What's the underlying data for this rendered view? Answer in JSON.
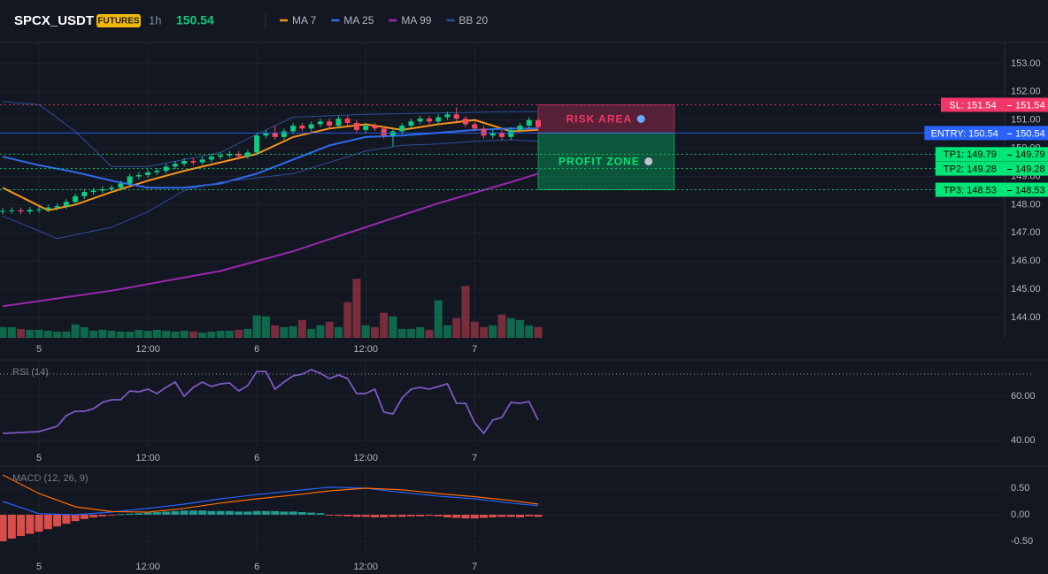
{
  "chart_data": [
    {
      "type": "candlestick",
      "title": "SPCX_USDT",
      "badge": "FUTURES",
      "interval": "1h",
      "last_price": 150.54,
      "xlim": [
        -4.3,
        106.4
      ],
      "xticks": [
        {
          "value": 0,
          "label": "5"
        },
        {
          "value": 12,
          "label": "12:00"
        },
        {
          "value": 24,
          "label": "6"
        },
        {
          "value": 36,
          "label": "12:00"
        },
        {
          "value": 48,
          "label": "7"
        }
      ],
      "ylim": [
        143.28,
        153.75
      ],
      "yticks": [
        {
          "value": 153,
          "label": "153.00"
        },
        {
          "value": 152,
          "label": "152.00"
        },
        {
          "value": 151,
          "label": "151.00"
        },
        {
          "value": 150,
          "label": "150.00"
        },
        {
          "value": 149,
          "label": "149.00"
        },
        {
          "value": 148,
          "label": "148.00"
        },
        {
          "value": 147,
          "label": "147.00"
        },
        {
          "value": 146,
          "label": "146.00"
        },
        {
          "value": 145,
          "label": "145.00"
        },
        {
          "value": 144,
          "label": "144.00"
        }
      ],
      "grid": true,
      "up_color": "#0ecb81",
      "down_color": "#f6465d",
      "x": [
        -4,
        -3,
        -2,
        -1,
        0,
        1,
        2,
        3,
        4,
        5,
        6,
        7,
        8,
        9,
        10,
        11,
        12,
        13,
        14,
        15,
        16,
        17,
        18,
        19,
        20,
        21,
        22,
        23,
        24,
        25,
        26,
        27,
        28,
        29,
        30,
        31,
        32,
        33,
        34,
        35,
        36,
        37,
        38,
        39,
        40,
        41,
        42,
        43,
        44,
        45,
        46,
        47,
        48,
        49,
        50,
        51,
        52,
        53,
        54,
        55
      ],
      "open": [
        147.75,
        147.78,
        147.8,
        147.76,
        147.82,
        147.84,
        147.9,
        147.95,
        148.1,
        148.3,
        148.45,
        148.5,
        148.55,
        148.6,
        148.75,
        149.0,
        149.05,
        149.15,
        149.2,
        149.35,
        149.45,
        149.55,
        149.5,
        149.6,
        149.7,
        149.75,
        149.8,
        149.72,
        149.85,
        150.45,
        150.55,
        150.4,
        150.6,
        150.8,
        150.7,
        150.85,
        150.95,
        150.8,
        151.05,
        150.9,
        150.65,
        150.8,
        150.7,
        150.45,
        150.6,
        150.8,
        150.95,
        151.05,
        150.95,
        151.1,
        151.2,
        151.05,
        150.85,
        150.7,
        150.45,
        150.55,
        150.4,
        150.65,
        150.8,
        151.0
      ],
      "high": [
        147.88,
        147.9,
        147.9,
        147.92,
        147.94,
        148.0,
        148.05,
        148.2,
        148.4,
        148.55,
        148.6,
        148.65,
        148.7,
        148.85,
        149.1,
        149.15,
        149.25,
        149.3,
        149.45,
        149.55,
        149.65,
        149.65,
        149.7,
        149.8,
        149.85,
        149.9,
        149.9,
        149.95,
        150.55,
        150.65,
        150.8,
        150.7,
        150.9,
        150.9,
        150.95,
        151.05,
        151.05,
        151.15,
        151.15,
        151.0,
        150.9,
        150.9,
        150.8,
        150.7,
        150.9,
        151.05,
        151.15,
        151.15,
        151.2,
        151.3,
        151.45,
        151.15,
        150.95,
        150.8,
        150.65,
        150.65,
        150.75,
        150.9,
        151.1,
        151.1
      ],
      "low": [
        147.65,
        147.68,
        147.66,
        147.66,
        147.72,
        147.74,
        147.8,
        147.85,
        148.0,
        148.2,
        148.35,
        148.4,
        148.45,
        148.5,
        148.65,
        148.9,
        148.95,
        149.05,
        149.1,
        149.25,
        149.35,
        149.4,
        149.4,
        149.5,
        149.6,
        149.65,
        149.62,
        149.62,
        149.75,
        150.35,
        150.3,
        150.3,
        150.5,
        150.6,
        150.6,
        150.75,
        150.7,
        150.7,
        150.8,
        150.55,
        150.55,
        150.6,
        150.35,
        150.05,
        150.5,
        150.7,
        150.85,
        150.85,
        150.85,
        151.0,
        150.95,
        150.75,
        150.6,
        150.35,
        150.35,
        150.3,
        150.3,
        150.55,
        150.7,
        150.65
      ],
      "close": [
        147.78,
        147.8,
        147.76,
        147.82,
        147.84,
        147.9,
        147.95,
        148.1,
        148.3,
        148.45,
        148.5,
        148.55,
        148.6,
        148.75,
        149.0,
        149.05,
        149.15,
        149.2,
        149.35,
        149.45,
        149.55,
        149.5,
        149.6,
        149.7,
        149.75,
        149.8,
        149.72,
        149.85,
        150.45,
        150.55,
        150.4,
        150.6,
        150.8,
        150.7,
        150.85,
        150.95,
        150.8,
        151.05,
        150.9,
        150.65,
        150.8,
        150.7,
        150.45,
        150.6,
        150.8,
        150.95,
        151.05,
        150.95,
        151.1,
        151.2,
        151.05,
        150.85,
        150.7,
        150.45,
        150.55,
        150.4,
        150.65,
        150.8,
        151.0,
        150.75
      ],
      "volume": [
        12,
        12,
        10,
        9,
        9,
        8,
        7,
        7,
        15,
        12,
        8,
        9,
        8,
        7,
        7,
        9,
        8,
        9,
        8,
        7,
        8,
        7,
        6,
        7,
        8,
        8,
        9,
        10,
        25,
        24,
        14,
        12,
        13,
        20,
        10,
        14,
        18,
        12,
        40,
        66,
        14,
        12,
        28,
        24,
        10,
        10,
        12,
        9,
        42,
        14,
        22,
        58,
        18,
        12,
        14,
        26,
        22,
        20,
        14,
        12
      ],
      "volume_lim": [
        0,
        330
      ],
      "series": [
        {
          "name": "MA 7",
          "color": "#f7931a",
          "x": [
            -4,
            1,
            4,
            8,
            12,
            16,
            20,
            24,
            28,
            32,
            36,
            40,
            44,
            48,
            52,
            55
          ],
          "values": [
            148.6,
            147.8,
            148.0,
            148.45,
            148.85,
            149.2,
            149.5,
            149.8,
            150.4,
            150.7,
            150.85,
            150.65,
            150.85,
            151.0,
            150.6,
            150.65
          ]
        },
        {
          "name": "MA 25",
          "color": "#2f6bef",
          "x": [
            -4,
            0,
            4,
            8,
            12,
            16,
            20,
            24,
            28,
            32,
            36,
            40,
            44,
            48,
            52,
            55
          ],
          "values": [
            149.7,
            149.4,
            149.15,
            148.85,
            148.6,
            148.6,
            148.75,
            149.1,
            149.6,
            150.1,
            150.4,
            150.45,
            150.55,
            150.65,
            150.7,
            150.7
          ]
        },
        {
          "name": "MA 99",
          "color": "#9c27b0",
          "x": [
            -4,
            8,
            20,
            28,
            36,
            44,
            52,
            55
          ],
          "values": [
            144.4,
            144.95,
            145.65,
            146.35,
            147.2,
            148.05,
            148.8,
            149.1
          ]
        },
        {
          "name": "BB 20",
          "color": "#2a4f9c",
          "bands": [
            {
              "x": [
                -4,
                0,
                4,
                8,
                12,
                16,
                20,
                24,
                28,
                36,
                44,
                52,
                55
              ],
              "values": [
                151.65,
                151.55,
                150.6,
                149.35,
                149.35,
                149.6,
                149.85,
                150.5,
                151.1,
                151.2,
                151.25,
                151.3,
                151.3
              ]
            },
            {
              "x": [
                -4,
                2,
                8,
                12,
                16,
                20,
                24,
                28,
                32,
                36,
                40,
                44,
                48,
                52,
                55
              ],
              "values": [
                147.6,
                146.8,
                147.2,
                147.75,
                148.5,
                148.8,
                148.95,
                149.1,
                149.5,
                149.9,
                150.1,
                150.15,
                150.25,
                150.3,
                150.25
              ]
            }
          ]
        }
      ],
      "levels": [
        {
          "label": "SL: 151.54",
          "value": 151.54,
          "color": "#f23667",
          "text_color": "#ffffff",
          "dashed": true
        },
        {
          "label": "ENTRY: 150.54",
          "value": 150.54,
          "color": "#2962ff",
          "text_color": "#ffffff",
          "dashed": false
        },
        {
          "label": "TP1: 149.79",
          "value": 149.79,
          "color": "#00e676",
          "text_color": "#000000",
          "dashed": true
        },
        {
          "label": "TP2: 149.28",
          "value": 149.28,
          "color": "#00e676",
          "text_color": "#000000",
          "dashed": true
        },
        {
          "label": "TP3: 148.53",
          "value": 148.53,
          "color": "#00e676",
          "text_color": "#000000",
          "dashed": true
        }
      ],
      "zones": [
        {
          "label": "RISK AREA",
          "from": 151.54,
          "to": 150.54,
          "x_from": 55,
          "x_to": 70,
          "color": "#f23667"
        },
        {
          "label": "PROFIT ZONE",
          "from": 150.54,
          "to": 148.53,
          "x_from": 55,
          "x_to": 70,
          "color": "#00e676"
        }
      ]
    },
    {
      "type": "line",
      "title": "RSI (14)",
      "color": "#7e57c2",
      "ylim": [
        37.2,
        76
      ],
      "yticks": [
        {
          "value": 60,
          "label": "60.00"
        },
        {
          "value": 40,
          "label": "40.00"
        }
      ],
      "reference_line": 70,
      "x": [
        -4,
        0,
        2,
        3,
        4,
        5,
        6,
        7,
        8,
        9,
        10,
        11,
        12,
        13,
        14,
        15,
        16,
        17,
        18,
        19,
        20,
        21,
        22,
        23,
        24,
        25,
        26,
        27,
        28,
        29,
        30,
        31,
        32,
        33,
        34,
        35,
        36,
        37,
        38,
        39,
        40,
        41,
        42,
        43,
        44,
        45,
        46,
        47,
        48,
        49,
        50,
        51,
        52,
        53,
        54,
        55
      ],
      "values": [
        43.2,
        44,
        46.4,
        51.2,
        53.2,
        53.2,
        54.4,
        57.2,
        58.4,
        58.4,
        62.4,
        62,
        63.2,
        61.2,
        64,
        66.4,
        60,
        64,
        66.4,
        64.4,
        65.6,
        66,
        62.4,
        64.8,
        71.2,
        71.2,
        63.2,
        66.4,
        69.2,
        70,
        72,
        70.4,
        68,
        69.6,
        68,
        61.2,
        61.2,
        63.2,
        52.8,
        52,
        59.2,
        63.2,
        64,
        63.2,
        64.4,
        65.6,
        56.8,
        56.8,
        48,
        43.2,
        49.2,
        50.4,
        57.2,
        56.8,
        57.6,
        49.2
      ]
    },
    {
      "type": "macd",
      "title": "MACD (12, 26, 9)",
      "ylim": [
        -0.767,
        0.9
      ],
      "yticks": [
        {
          "value": 0.5,
          "label": "0.50"
        },
        {
          "value": 0,
          "label": "0.00"
        },
        {
          "value": -0.5,
          "label": "-0.50"
        }
      ],
      "up_color": "#26a69a",
      "down_color": "#ef5350",
      "histogram": [
        -0.5,
        -0.45,
        -0.4,
        -0.36,
        -0.32,
        -0.27,
        -0.22,
        -0.17,
        -0.12,
        -0.08,
        -0.05,
        -0.03,
        -0.01,
        0.01,
        0.02,
        0.03,
        0.04,
        0.05,
        0.06,
        0.07,
        0.08,
        0.08,
        0.08,
        0.07,
        0.07,
        0.07,
        0.06,
        0.06,
        0.07,
        0.07,
        0.07,
        0.06,
        0.06,
        0.05,
        0.04,
        0.03,
        -0.01,
        -0.02,
        -0.03,
        -0.04,
        -0.04,
        -0.05,
        -0.05,
        -0.04,
        -0.04,
        -0.03,
        -0.03,
        -0.02,
        -0.03,
        -0.05,
        -0.06,
        -0.07,
        -0.07,
        -0.06,
        -0.05,
        -0.04,
        -0.04,
        -0.05,
        -0.03,
        -0.04
      ],
      "series": [
        {
          "color": "#2962ff",
          "x": [
            -4,
            0,
            4,
            8,
            12,
            16,
            20,
            24,
            28,
            32,
            36,
            40,
            44,
            48,
            52,
            55
          ],
          "values": [
            0.25,
            0.02,
            0.0,
            0.05,
            0.12,
            0.2,
            0.3,
            0.38,
            0.45,
            0.52,
            0.5,
            0.42,
            0.35,
            0.3,
            0.22,
            0.17
          ]
        },
        {
          "color": "#ff6d00",
          "x": [
            -4,
            0,
            4,
            8,
            12,
            16,
            20,
            24,
            28,
            32,
            36,
            40,
            44,
            48,
            52,
            55
          ],
          "values": [
            0.75,
            0.4,
            0.15,
            0.06,
            0.05,
            0.12,
            0.22,
            0.3,
            0.37,
            0.45,
            0.5,
            0.47,
            0.4,
            0.34,
            0.27,
            0.2
          ]
        }
      ]
    }
  ]
}
